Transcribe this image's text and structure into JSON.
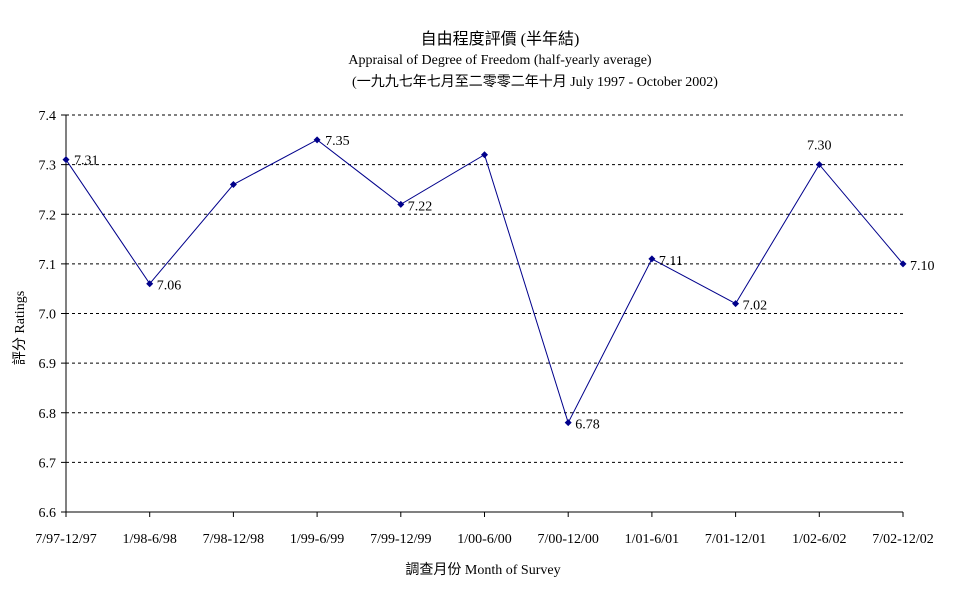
{
  "chart_data": {
    "type": "line",
    "title": "自由程度評價 (半年結)",
    "subtitle": "Appraisal of Degree of Freedom  (half-yearly average)",
    "period": "(一九九七年七月至二零零二年十月 July 1997 - October 2002)",
    "xlabel": "調查月份 Month of Survey",
    "ylabel": "評分 Ratings",
    "categories": [
      "7/97-12/97",
      "1/98-6/98",
      "7/98-12/98",
      "1/99-6/99",
      "7/99-12/99",
      "1/00-6/00",
      "7/00-12/00",
      "1/01-6/01",
      "7/01-12/01",
      "1/02-6/02",
      "7/02-12/02"
    ],
    "values": [
      7.31,
      7.06,
      7.26,
      7.35,
      7.22,
      7.32,
      6.78,
      7.11,
      7.02,
      7.3,
      7.1
    ],
    "data_labels": [
      "7.31",
      "7.06",
      "",
      "7.35",
      "7.22",
      "",
      "6.78",
      "7.11",
      "7.02",
      "7.30",
      "7.10"
    ],
    "y_ticks": [
      "6.6",
      "6.7",
      "6.8",
      "6.9",
      "7.0",
      "7.1",
      "7.2",
      "7.3",
      "7.4"
    ],
    "ylim": [
      6.6,
      7.4
    ],
    "grid": "horizontal dashed",
    "line_color": "#00008b",
    "marker_color": "#00008b"
  }
}
